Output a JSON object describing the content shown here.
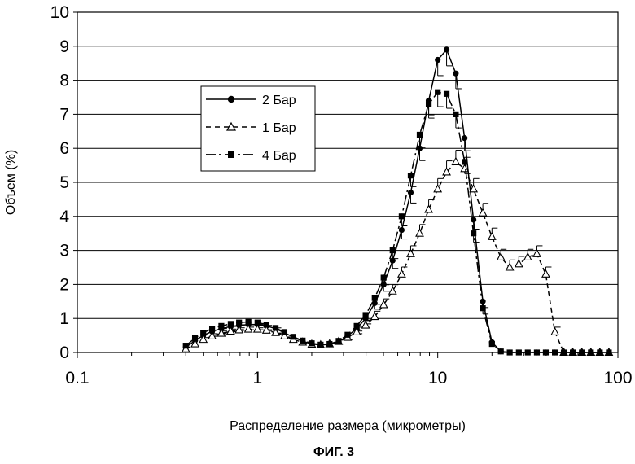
{
  "chart_data": {
    "type": "line",
    "xscale": "log",
    "xlim": [
      0.1,
      100
    ],
    "ylim": [
      0,
      10
    ],
    "xticks": [
      0.1,
      1,
      10,
      100
    ],
    "xtick_labels": [
      "0.1",
      "1",
      "10",
      "100"
    ],
    "yticks": [
      0,
      1,
      2,
      3,
      4,
      5,
      6,
      7,
      8,
      9,
      10
    ],
    "ytick_labels": [
      "0",
      "1",
      "2",
      "3",
      "4",
      "5",
      "6",
      "7",
      "8",
      "9",
      "10"
    ],
    "grid": "horizontal",
    "xlabel": "Распределение размера (микрометры)",
    "ylabel": "Объем (%)",
    "figure_label": "ФИГ. 3",
    "legend_position": "upper-left",
    "series": [
      {
        "name": "2 Бар",
        "marker": "circle-filled",
        "line": "solid",
        "color": "#000000",
        "x": [
          0.4,
          0.45,
          0.5,
          0.56,
          0.63,
          0.71,
          0.79,
          0.89,
          1.0,
          1.12,
          1.26,
          1.41,
          1.58,
          1.78,
          2.0,
          2.24,
          2.51,
          2.82,
          3.16,
          3.55,
          3.98,
          4.47,
          5.01,
          5.62,
          6.31,
          7.08,
          7.94,
          8.91,
          10.0,
          11.2,
          12.6,
          14.1,
          15.8,
          17.8,
          20.0,
          22.4,
          25.1,
          28.2,
          31.6,
          35.5,
          39.8,
          44.7,
          50.1,
          56.2,
          63.1,
          70.8,
          79.4,
          89.1
        ],
        "y": [
          0.15,
          0.35,
          0.5,
          0.62,
          0.7,
          0.76,
          0.8,
          0.82,
          0.82,
          0.78,
          0.7,
          0.58,
          0.45,
          0.33,
          0.25,
          0.22,
          0.24,
          0.32,
          0.48,
          0.7,
          1.0,
          1.45,
          2.0,
          2.7,
          3.6,
          4.7,
          6.0,
          7.4,
          8.6,
          8.9,
          8.2,
          6.3,
          3.9,
          1.5,
          0.3,
          0.03,
          0.0,
          0.0,
          0.0,
          0.0,
          0.0,
          0.0,
          0.0,
          0.0,
          0.0,
          0.0,
          0.0,
          0.0
        ]
      },
      {
        "name": "1 Бар",
        "marker": "triangle-open",
        "line": "dashed",
        "color": "#000000",
        "x": [
          0.4,
          0.45,
          0.5,
          0.56,
          0.63,
          0.71,
          0.79,
          0.89,
          1.0,
          1.12,
          1.26,
          1.41,
          1.58,
          1.78,
          2.0,
          2.24,
          2.51,
          2.82,
          3.16,
          3.55,
          3.98,
          4.47,
          5.01,
          5.62,
          6.31,
          7.08,
          7.94,
          8.91,
          10.0,
          11.2,
          12.6,
          14.1,
          15.8,
          17.8,
          20.0,
          22.4,
          25.1,
          28.2,
          31.6,
          35.5,
          39.8,
          44.7,
          50.1,
          56.2,
          63.1,
          70.8,
          79.4,
          89.1
        ],
        "y": [
          0.1,
          0.25,
          0.38,
          0.48,
          0.56,
          0.62,
          0.66,
          0.68,
          0.68,
          0.65,
          0.58,
          0.48,
          0.38,
          0.3,
          0.24,
          0.22,
          0.25,
          0.32,
          0.44,
          0.6,
          0.8,
          1.05,
          1.4,
          1.8,
          2.3,
          2.9,
          3.5,
          4.2,
          4.8,
          5.3,
          5.6,
          5.4,
          4.8,
          4.1,
          3.4,
          2.8,
          2.5,
          2.6,
          2.8,
          2.9,
          2.3,
          0.6,
          0.0,
          0.0,
          0.0,
          0.0,
          0.0,
          0.0
        ]
      },
      {
        "name": "4 Бар",
        "marker": "square-filled",
        "line": "dash-dot",
        "color": "#000000",
        "x": [
          0.4,
          0.45,
          0.5,
          0.56,
          0.63,
          0.71,
          0.79,
          0.89,
          1.0,
          1.12,
          1.26,
          1.41,
          1.58,
          1.78,
          2.0,
          2.24,
          2.51,
          2.82,
          3.16,
          3.55,
          3.98,
          4.47,
          5.01,
          5.62,
          6.31,
          7.08,
          7.94,
          8.91,
          10.0,
          11.2,
          12.6,
          14.1,
          15.8,
          17.8,
          20.0,
          22.4,
          25.1,
          28.2,
          31.6,
          35.5,
          39.8,
          44.7,
          50.1,
          56.2,
          63.1,
          70.8,
          79.4,
          89.1
        ],
        "y": [
          0.2,
          0.42,
          0.58,
          0.7,
          0.78,
          0.84,
          0.88,
          0.9,
          0.88,
          0.82,
          0.72,
          0.6,
          0.46,
          0.35,
          0.27,
          0.23,
          0.25,
          0.34,
          0.52,
          0.78,
          1.1,
          1.6,
          2.2,
          3.0,
          4.0,
          5.2,
          6.4,
          7.3,
          7.65,
          7.6,
          7.0,
          5.6,
          3.5,
          1.3,
          0.25,
          0.03,
          0.0,
          0.0,
          0.0,
          0.0,
          0.0,
          0.0,
          0.0,
          0.0,
          0.0,
          0.0,
          0.0,
          0.0
        ]
      }
    ]
  }
}
